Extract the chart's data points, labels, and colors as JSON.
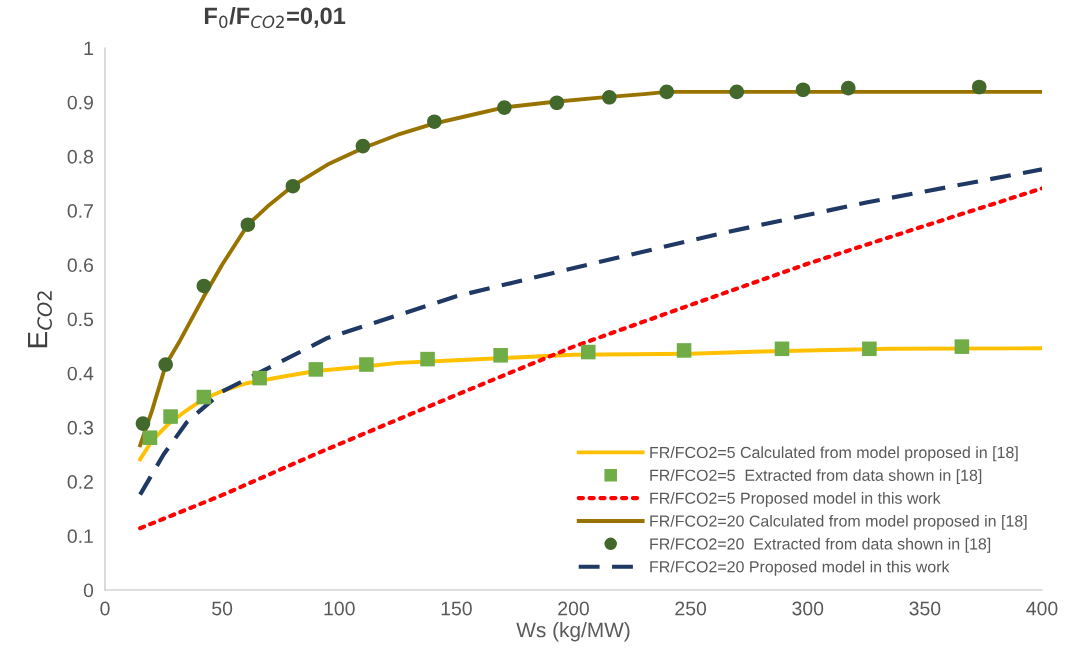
{
  "chart_data": {
    "type": "line",
    "title": "F$_{0}$/F$_{CO2}$=0,01",
    "xlabel": "Ws (kg/MW)",
    "ylabel": "E$_{CO2}$",
    "xlim": [
      0,
      400
    ],
    "xticks": [
      0,
      50,
      100,
      150,
      200,
      250,
      300,
      350,
      400
    ],
    "ylim": [
      0,
      1
    ],
    "yticks": [
      0,
      {
        "value": 0.1,
        "label": "0.1"
      },
      {
        "value": 0.2,
        "label": "0.2"
      },
      {
        "value": 0.3,
        "label": "0.3"
      },
      {
        "value": 0.4,
        "label": "0.4"
      },
      {
        "value": 0.5,
        "label": "0.5"
      },
      {
        "value": 0.6,
        "label": "0.6"
      },
      {
        "value": 0.7,
        "label": "0.7"
      },
      {
        "value": 0.8,
        "label": "0.8"
      },
      {
        "value": 0.9,
        "label": "0.9"
      },
      1
    ],
    "grid": false,
    "legend": "bottom right",
    "series": [
      {
        "name": "FR/FCO2=5 Calculated from model proposed in [18]",
        "color": "#ffc000",
        "line_style": "solid",
        "marker": "none",
        "x": [
          15,
          20,
          27,
          35,
          42,
          50,
          60,
          75,
          90,
          110,
          125,
          150,
          175,
          200,
          250,
          280,
          300,
          335,
          400
        ],
        "values": [
          0.241,
          0.275,
          0.306,
          0.332,
          0.352,
          0.367,
          0.381,
          0.393,
          0.404,
          0.412,
          0.419,
          0.424,
          0.429,
          0.434,
          0.436,
          0.44,
          0.442,
          0.445,
          0.446
        ]
      },
      {
        "name": "FR/FCO2=5  Extracted from data shown in [18]",
        "type": "scatter",
        "color": "#70ad47",
        "marker": "square",
        "x": [
          19.2,
          28.0,
          42.2,
          66.0,
          90.0,
          111.6,
          137.7,
          168.9,
          206.3,
          247.2,
          289.0,
          326.3,
          365.8
        ],
        "values": [
          0.281,
          0.32,
          0.356,
          0.391,
          0.407,
          0.416,
          0.426,
          0.433,
          0.439,
          0.442,
          0.445,
          0.445,
          0.449
        ]
      },
      {
        "name": "FR/FCO2=5 Proposed model in this work",
        "color": "#ff0000",
        "line_style": "dotted",
        "marker": "none",
        "x": [
          15,
          50,
          90,
          150,
          200,
          250,
          300,
          350,
          400
        ],
        "values": [
          0.114,
          0.175,
          0.251,
          0.36,
          0.449,
          0.526,
          0.602,
          0.672,
          0.741
        ]
      },
      {
        "name": "FR/FCO2=20 Calculated from model proposed in [18]",
        "color": "#997300",
        "line_style": "solid",
        "marker": "none",
        "x": [
          15,
          20,
          26,
          32,
          42,
          50,
          61,
          70,
          80,
          95,
          110,
          125,
          140,
          155,
          170,
          190,
          210,
          230,
          240,
          400
        ],
        "values": [
          0.267,
          0.33,
          0.416,
          0.46,
          0.54,
          0.6,
          0.674,
          0.71,
          0.745,
          0.785,
          0.815,
          0.84,
          0.86,
          0.875,
          0.89,
          0.9,
          0.908,
          0.915,
          0.919,
          0.919
        ]
      },
      {
        "name": "FR/FCO2=20  Extracted from data shown in [18]",
        "type": "scatter",
        "color": "#43682b",
        "marker": "circle",
        "x": [
          16.2,
          25.9,
          42.2,
          61.0,
          80.2,
          110.1,
          140.6,
          170.5,
          192.9,
          215.3,
          239.8,
          269.7,
          298.0,
          317.3,
          373.2
        ],
        "values": [
          0.307,
          0.416,
          0.561,
          0.674,
          0.745,
          0.819,
          0.864,
          0.89,
          0.899,
          0.909,
          0.919,
          0.919,
          0.923,
          0.926,
          0.928
        ]
      },
      {
        "name": "FR/FCO2=20 Proposed model in this work",
        "color": "#203864",
        "line_style": "dashed",
        "marker": "none",
        "x": [
          15,
          25,
          35,
          50,
          95,
          150,
          202,
          264,
          325,
          400
        ],
        "values": [
          0.176,
          0.25,
          0.31,
          0.366,
          0.465,
          0.542,
          0.596,
          0.659,
          0.715,
          0.776
        ]
      }
    ]
  }
}
